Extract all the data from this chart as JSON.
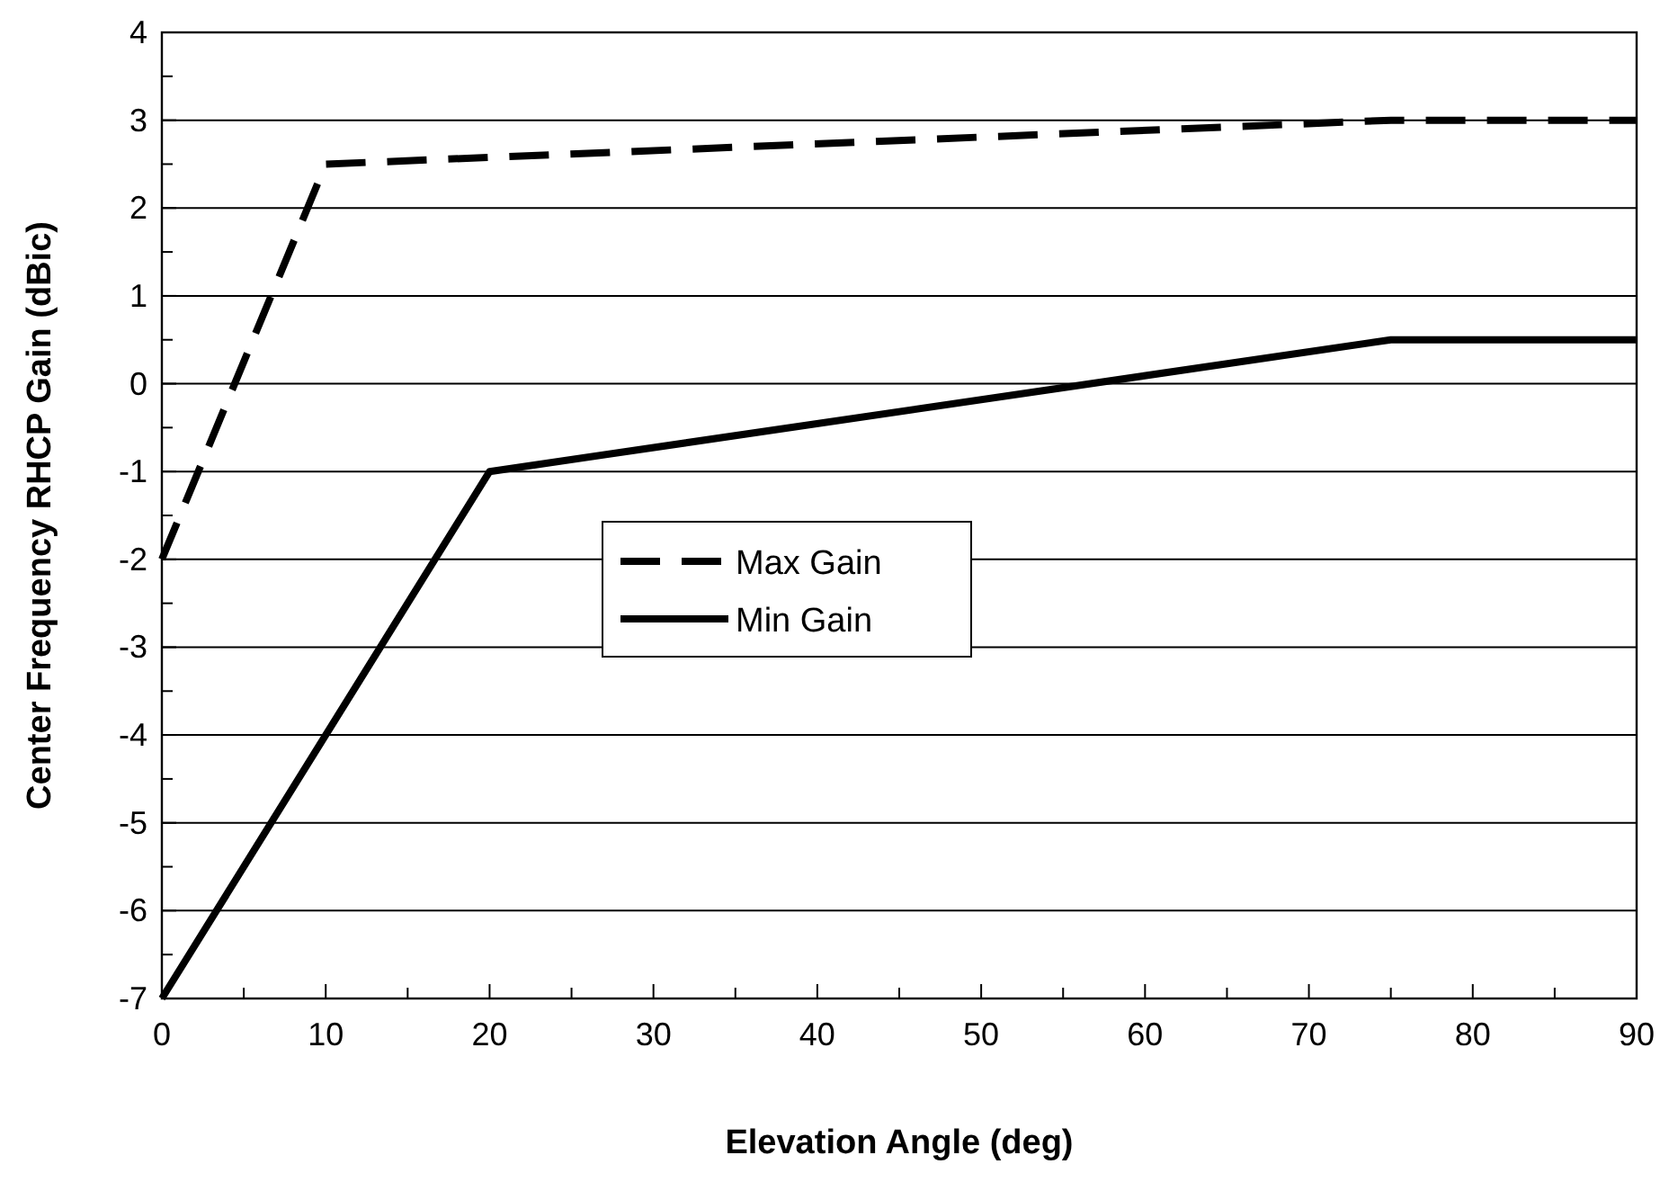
{
  "chart_data": {
    "type": "line",
    "xlabel": "Elevation Angle (deg)",
    "ylabel": "Center Frequency RHCP Gain (dBic)",
    "xlim": [
      0,
      90
    ],
    "ylim": [
      -7,
      4
    ],
    "xticks": [
      0,
      {
        "value": 5,
        "label": null
      },
      10,
      {
        "value": 15,
        "label": null
      },
      20,
      {
        "value": 25,
        "label": null
      },
      30,
      {
        "value": 35,
        "label": null
      },
      40,
      {
        "value": 45,
        "label": null
      },
      50,
      {
        "value": 55,
        "label": null
      },
      60,
      {
        "value": 65,
        "label": null
      },
      70,
      {
        "value": 75,
        "label": null
      },
      80,
      {
        "value": 85,
        "label": null
      },
      90
    ],
    "yticks": [
      -7,
      {
        "value": -6.5,
        "label": null
      },
      -6,
      {
        "value": -5.5,
        "label": null
      },
      -5,
      {
        "value": -4.5,
        "label": null
      },
      -4,
      {
        "value": -3.5,
        "label": null
      },
      -3,
      {
        "value": -2.5,
        "label": null
      },
      -2,
      {
        "value": -1.5,
        "label": null
      },
      -1,
      {
        "value": -0.5,
        "label": null
      },
      0,
      {
        "value": 0.5,
        "label": null
      },
      1,
      {
        "value": 1.5,
        "label": null
      },
      2,
      {
        "value": 2.5,
        "label": null
      },
      3,
      {
        "value": 3.5,
        "label": null
      },
      4
    ],
    "grid": "y",
    "legend": "center",
    "series": [
      {
        "name": "Max Gain",
        "color": "#000000",
        "line_style": "dashed",
        "x": [
          0,
          10,
          75,
          90
        ],
        "values": [
          -2,
          2.5,
          3,
          3
        ]
      },
      {
        "name": "Min Gain",
        "color": "#000000",
        "line_style": "solid",
        "x": [
          0,
          20,
          75,
          90
        ],
        "values": [
          -7,
          -1,
          0.5,
          0.5
        ]
      }
    ]
  }
}
